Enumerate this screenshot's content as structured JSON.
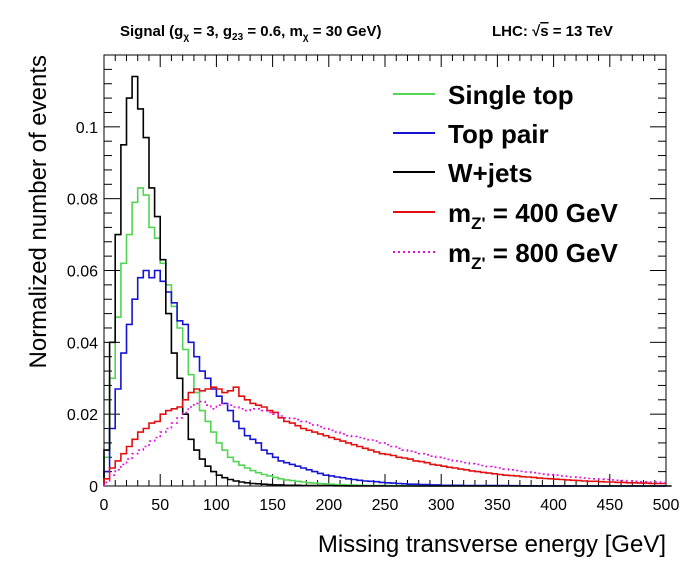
{
  "header": {
    "signal_label": "Signal (g",
    "g_chi_sub": "χ",
    "g_chi_val": " = 3, g",
    "g23_sub": "23",
    "g23_val": " = 0.6, m",
    "m_chi_sub": "χ",
    "m_chi_val": " = 30 GeV)",
    "lhc_label": "LHC: ",
    "sqrt_symbol": "√",
    "s_text": "s",
    "energy_text": " = 13 TeV"
  },
  "chart_data": {
    "type": "histogram",
    "xlabel": "Missing transverse energy [GeV]",
    "ylabel": "Normalized number of events",
    "xlim": [
      0,
      500
    ],
    "ylim": [
      0,
      0.12
    ],
    "bin_width": 5,
    "xticks": [
      "0",
      "50",
      "100",
      "150",
      "200",
      "250",
      "300",
      "350",
      "400",
      "450",
      "500"
    ],
    "yticks": [
      "0",
      "0.02",
      "0.04",
      "0.06",
      "0.08",
      "0.1"
    ],
    "legend_position": "top-right",
    "series": [
      {
        "name": "Single top",
        "color": "#54d454",
        "style": "solid",
        "values": [
          0.008,
          0.03,
          0.047,
          0.062,
          0.07,
          0.079,
          0.083,
          0.081,
          0.072,
          0.069,
          0.062,
          0.056,
          0.05,
          0.044,
          0.038,
          0.031,
          0.026,
          0.021,
          0.018,
          0.015,
          0.012,
          0.01,
          0.008,
          0.0068,
          0.0058,
          0.005,
          0.0043,
          0.0037,
          0.0032,
          0.0028,
          0.0024,
          0.002,
          0.0017,
          0.0015,
          0.0013,
          0.0011,
          0.0009,
          0.0008,
          0.0007,
          0.0006,
          0.0005,
          0.0004,
          0.00035,
          0.0003,
          0.00025,
          0.0002,
          0.00018,
          0.00015,
          0.00012,
          0.0001,
          0.0001,
          8e-05,
          7e-05,
          6e-05,
          5e-05,
          5e-05,
          4e-05,
          4e-05,
          3e-05,
          3e-05,
          2e-05,
          2e-05,
          2e-05,
          2e-05,
          1e-05,
          1e-05,
          1e-05,
          1e-05,
          1e-05,
          1e-05,
          0,
          0,
          0,
          0,
          0,
          0,
          0,
          0,
          0,
          0,
          0,
          0,
          0,
          0,
          0,
          0,
          0,
          0,
          0,
          0,
          0,
          0,
          0,
          0,
          0,
          0,
          0,
          0,
          0,
          0
        ]
      },
      {
        "name": "Top pair",
        "color": "#1414d2",
        "style": "solid",
        "values": [
          0.004,
          0.016,
          0.027,
          0.037,
          0.045,
          0.052,
          0.058,
          0.06,
          0.058,
          0.06,
          0.057,
          0.054,
          0.051,
          0.046,
          0.045,
          0.04,
          0.036,
          0.032,
          0.03,
          0.027,
          0.025,
          0.023,
          0.021,
          0.018,
          0.016,
          0.014,
          0.013,
          0.012,
          0.01,
          0.009,
          0.008,
          0.007,
          0.0065,
          0.006,
          0.0055,
          0.005,
          0.0045,
          0.004,
          0.0035,
          0.003,
          0.0028,
          0.0025,
          0.0023,
          0.002,
          0.0018,
          0.0016,
          0.0014,
          0.0013,
          0.0012,
          0.001,
          0.0009,
          0.0008,
          0.0007,
          0.0006,
          0.0005,
          0.0005,
          0.0004,
          0.0004,
          0.0003,
          0.0003,
          0.0002,
          0.0002,
          0.0002,
          0.0002,
          0.0001,
          0.0001,
          0.0001,
          0.0001,
          0.0001,
          0.0001,
          0.0001,
          0.0001,
          8e-05,
          7e-05,
          6e-05,
          5e-05,
          5e-05,
          4e-05,
          4e-05,
          3e-05,
          3e-05,
          2e-05,
          2e-05,
          2e-05,
          1e-05,
          1e-05,
          1e-05,
          1e-05,
          1e-05,
          1e-05,
          1e-05,
          1e-05,
          1e-05,
          1e-05,
          1e-05,
          1e-05,
          1e-05,
          1e-05,
          1e-05,
          1e-05
        ]
      },
      {
        "name": "W+jets",
        "color": "#000000",
        "style": "solid",
        "values": [
          0.01,
          0.04,
          0.07,
          0.095,
          0.108,
          0.114,
          0.105,
          0.097,
          0.083,
          0.075,
          0.063,
          0.048,
          0.037,
          0.03,
          0.02,
          0.013,
          0.01,
          0.0075,
          0.0055,
          0.004,
          0.003,
          0.0023,
          0.0018,
          0.0014,
          0.0011,
          0.0009,
          0.0007,
          0.0006,
          0.0005,
          0.0004,
          0.0003,
          0.0003,
          0.0002,
          0.0002,
          0.0002,
          0.0001,
          0.0001,
          0.0001,
          0.0001,
          0.0001,
          8e-05,
          6e-05,
          5e-05,
          4e-05,
          4e-05,
          3e-05,
          3e-05,
          2e-05,
          2e-05,
          2e-05,
          1e-05,
          1e-05,
          1e-05,
          1e-05,
          1e-05,
          0,
          0,
          0,
          0,
          0,
          0,
          0,
          0,
          0,
          0,
          0,
          0,
          0,
          0,
          0,
          0,
          0,
          0,
          0,
          0,
          0,
          0,
          0,
          0,
          0,
          0,
          0,
          0,
          0,
          0,
          0,
          0,
          0,
          0,
          0,
          0,
          0,
          0,
          0,
          0,
          0,
          0,
          0,
          0,
          0,
          0
        ]
      },
      {
        "name": "m_Z' = 400 GeV",
        "label_main": "m",
        "label_sub": "Z'",
        "label_rest": " = 400 GeV",
        "color": "#e01010",
        "style": "solid",
        "values": [
          0.002,
          0.005,
          0.007,
          0.009,
          0.011,
          0.013,
          0.015,
          0.016,
          0.0175,
          0.018,
          0.02,
          0.021,
          0.0215,
          0.022,
          0.024,
          0.026,
          0.027,
          0.0265,
          0.027,
          0.0275,
          0.027,
          0.026,
          0.0265,
          0.0275,
          0.025,
          0.024,
          0.023,
          0.0225,
          0.022,
          0.021,
          0.0205,
          0.019,
          0.018,
          0.0175,
          0.0168,
          0.016,
          0.0155,
          0.015,
          0.0145,
          0.014,
          0.0135,
          0.013,
          0.0125,
          0.012,
          0.0115,
          0.011,
          0.0105,
          0.01,
          0.0095,
          0.009,
          0.0088,
          0.0085,
          0.008,
          0.0078,
          0.0075,
          0.007,
          0.0068,
          0.0065,
          0.006,
          0.0058,
          0.0055,
          0.0052,
          0.005,
          0.0047,
          0.0045,
          0.0042,
          0.004,
          0.0038,
          0.0036,
          0.0034,
          0.0032,
          0.003,
          0.0029,
          0.0028,
          0.0026,
          0.0025,
          0.0024,
          0.0022,
          0.0021,
          0.002,
          0.0019,
          0.0018,
          0.0017,
          0.0016,
          0.0015,
          0.0014,
          0.0013,
          0.0013,
          0.0012,
          0.0011,
          0.0011,
          0.001,
          0.001,
          0.0009,
          0.0009,
          0.0008,
          0.0008,
          0.0007,
          0.0007,
          0.0007
        ]
      },
      {
        "name": "m_Z' = 800 GeV",
        "label_main": "m",
        "label_sub": "Z'",
        "label_rest": " = 800 GeV",
        "color": "#e010e0",
        "style": "dotted",
        "values": [
          0.001,
          0.003,
          0.0045,
          0.006,
          0.0075,
          0.009,
          0.01,
          0.011,
          0.0125,
          0.0135,
          0.015,
          0.016,
          0.0175,
          0.019,
          0.0205,
          0.022,
          0.023,
          0.0235,
          0.0225,
          0.0215,
          0.0225,
          0.023,
          0.0225,
          0.022,
          0.0215,
          0.021,
          0.0215,
          0.0215,
          0.021,
          0.0205,
          0.02,
          0.0195,
          0.019,
          0.0188,
          0.0185,
          0.018,
          0.0175,
          0.017,
          0.0165,
          0.016,
          0.0155,
          0.015,
          0.0145,
          0.014,
          0.0138,
          0.0135,
          0.0132,
          0.0128,
          0.0125,
          0.012,
          0.0115,
          0.011,
          0.0105,
          0.01,
          0.0097,
          0.0094,
          0.009,
          0.0087,
          0.0083,
          0.008,
          0.0077,
          0.0074,
          0.007,
          0.0068,
          0.0065,
          0.0062,
          0.006,
          0.0057,
          0.0054,
          0.0052,
          0.005,
          0.0047,
          0.0045,
          0.0043,
          0.0041,
          0.0039,
          0.0037,
          0.0035,
          0.0033,
          0.0031,
          0.003,
          0.0028,
          0.0027,
          0.0025,
          0.0024,
          0.0022,
          0.0021,
          0.002,
          0.0019,
          0.0018,
          0.0017,
          0.0016,
          0.0015,
          0.0014,
          0.0013,
          0.0012,
          0.0012,
          0.0011,
          0.0011,
          0.001
        ]
      }
    ]
  }
}
